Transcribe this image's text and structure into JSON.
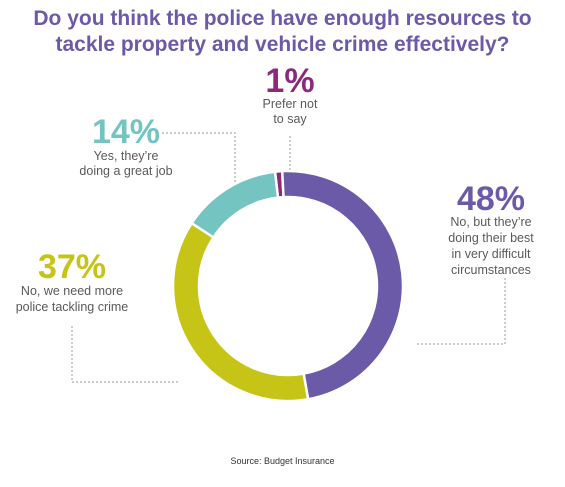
{
  "chart_data": {
    "type": "pie",
    "title_lines": [
      "Do you think the police have enough resources to",
      "tackle property and vehicle crime effectively?"
    ],
    "slices": [
      {
        "key": "prefer-not",
        "value": 1,
        "label": "1%",
        "desc_lines": [
          "Prefer not",
          "to say"
        ],
        "color": "#8b2a7a"
      },
      {
        "key": "no-best",
        "value": 48,
        "label": "48%",
        "desc_lines": [
          "No, but they’re",
          "doing their best",
          "in very difficult",
          "circumstances"
        ],
        "color": "#6a5aa7"
      },
      {
        "key": "no-more",
        "value": 37,
        "label": "37%",
        "desc_lines": [
          "No, we need more",
          "police tackling crime"
        ],
        "color": "#c6c417"
      },
      {
        "key": "yes",
        "value": 14,
        "label": "14%",
        "desc_lines": [
          "Yes, they’re",
          "doing a great job"
        ],
        "color": "#74c4c2"
      }
    ],
    "source": "Source: Budget Insurance"
  }
}
